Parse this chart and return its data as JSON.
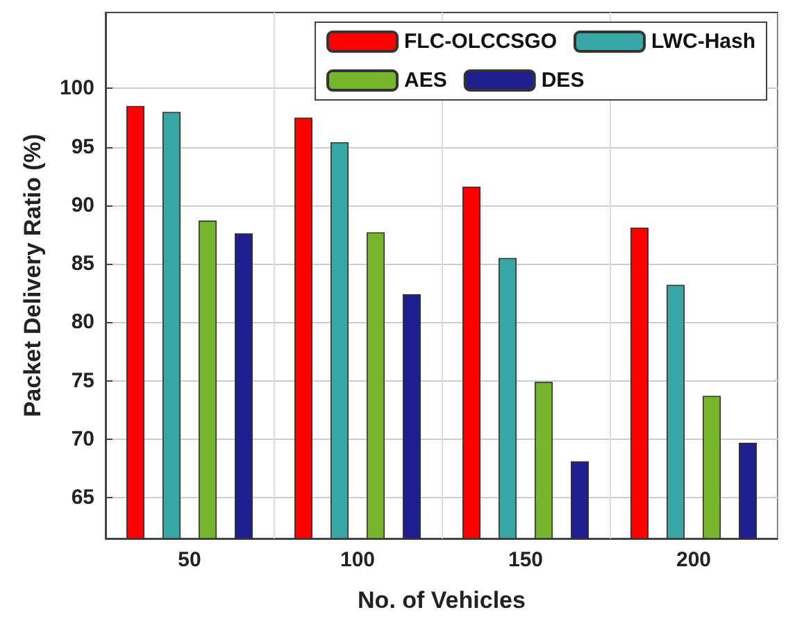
{
  "chart_data": {
    "type": "bar",
    "xlabel": "No. of Vehicles",
    "ylabel": "Packet Delivery Ratio (%)",
    "categories": [
      "50",
      "100",
      "150",
      "200"
    ],
    "series": [
      {
        "name": "FLC-OLCCSGO",
        "color": "#ff0000",
        "values": [
          98.5,
          97.5,
          91.6,
          88.1
        ]
      },
      {
        "name": "LWC-Hash",
        "color": "#39a6a6",
        "values": [
          98.0,
          95.4,
          85.5,
          83.2
        ]
      },
      {
        "name": "AES",
        "color": "#77b52e",
        "values": [
          88.7,
          87.7,
          74.9,
          73.7
        ]
      },
      {
        "name": "DES",
        "color": "#1f1f8f",
        "values": [
          87.6,
          82.4,
          68.1,
          69.7
        ]
      }
    ],
    "ylim": [
      61.5,
      106.5
    ],
    "yticks": [
      65,
      70,
      75,
      80,
      85,
      90,
      95,
      100
    ],
    "grid": true,
    "legend": "top right"
  }
}
